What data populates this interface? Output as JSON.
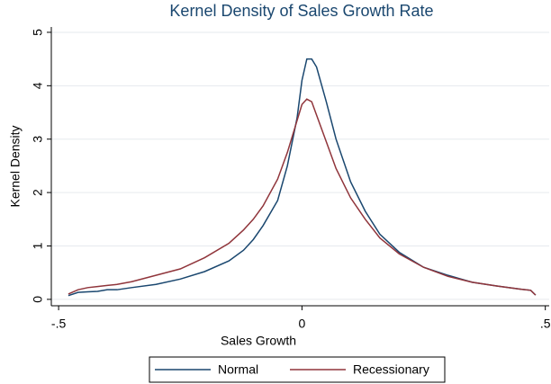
{
  "chart_data": {
    "type": "line",
    "title": "Kernel Density of Sales Growth Rate",
    "xlabel": "Sales Growth",
    "ylabel": "Kernel Density",
    "x": [
      -0.48,
      -0.46,
      -0.44,
      -0.42,
      -0.4,
      -0.38,
      -0.35,
      -0.3,
      -0.25,
      -0.2,
      -0.15,
      -0.12,
      -0.1,
      -0.08,
      -0.05,
      -0.03,
      -0.01,
      0.0,
      0.01,
      0.02,
      0.03,
      0.05,
      0.07,
      0.1,
      0.13,
      0.16,
      0.2,
      0.25,
      0.3,
      0.35,
      0.4,
      0.45,
      0.47,
      0.48
    ],
    "series": [
      {
        "name": "Normal",
        "color": "#1a476f",
        "values": [
          0.07,
          0.13,
          0.14,
          0.15,
          0.18,
          0.18,
          0.22,
          0.28,
          0.38,
          0.52,
          0.72,
          0.92,
          1.12,
          1.38,
          1.85,
          2.5,
          3.4,
          4.1,
          4.5,
          4.5,
          4.35,
          3.7,
          3.0,
          2.2,
          1.65,
          1.22,
          0.88,
          0.6,
          0.45,
          0.32,
          0.25,
          0.19,
          0.17,
          0.08
        ]
      },
      {
        "name": "Recessionary",
        "color": "#90353b",
        "values": [
          0.1,
          0.18,
          0.22,
          0.24,
          0.26,
          0.28,
          0.33,
          0.45,
          0.57,
          0.78,
          1.05,
          1.3,
          1.5,
          1.75,
          2.25,
          2.75,
          3.35,
          3.65,
          3.75,
          3.7,
          3.45,
          2.95,
          2.45,
          1.9,
          1.5,
          1.15,
          0.85,
          0.6,
          0.43,
          0.32,
          0.25,
          0.19,
          0.17,
          0.08
        ]
      }
    ],
    "xlim": [
      -0.515,
      0.508
    ],
    "xticks": [
      {
        "value": -0.5,
        "label": "-.5"
      },
      0,
      {
        "value": 0.5,
        "label": ".5"
      }
    ],
    "ylim": [
      -0.12,
      5.1
    ],
    "yticks": [
      0,
      1,
      2,
      3,
      4,
      5
    ],
    "grid": true,
    "legend": "bottom"
  }
}
